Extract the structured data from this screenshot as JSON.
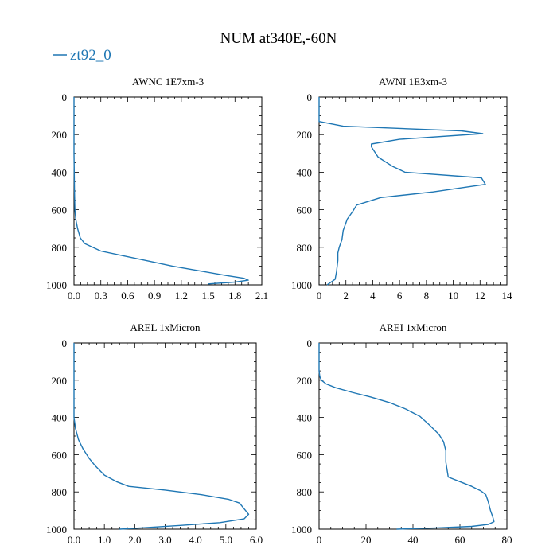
{
  "title": "NUM at340E,-60N",
  "legend": {
    "label": "zt92_0",
    "color": "#1f77b4"
  },
  "chart_data": [
    {
      "type": "line",
      "title": "AWNC  1E7xm-3",
      "xlim": [
        0,
        2.1
      ],
      "ylim": [
        1000,
        0
      ],
      "x_ticks": [
        0.0,
        0.3,
        0.6,
        0.9,
        1.2,
        1.5,
        1.8,
        2.1
      ],
      "x_tick_labels": [
        "0.0",
        "0.3",
        "0.6",
        "0.9",
        "1.2",
        "1.5",
        "1.8",
        "2.1"
      ],
      "y_ticks": [
        0,
        200,
        400,
        600,
        800,
        1000
      ],
      "y_tick_labels": [
        "0",
        "200",
        "400",
        "600",
        "800",
        "1000"
      ],
      "series": [
        {
          "name": "zt92_0",
          "x": [
            0,
            0,
            0.005,
            0.01,
            0.02,
            0.04,
            0.07,
            0.12,
            0.3,
            0.55,
            0.8,
            1.1,
            1.4,
            1.7,
            1.9,
            1.95,
            1.8,
            1.5
          ],
          "y": [
            0,
            300,
            500,
            600,
            650,
            700,
            750,
            780,
            820,
            845,
            870,
            900,
            925,
            950,
            965,
            975,
            985,
            995
          ]
        }
      ]
    },
    {
      "type": "line",
      "title": "AWNI  1E3xm-3",
      "xlim": [
        0,
        14
      ],
      "ylim": [
        1000,
        0
      ],
      "x_ticks": [
        0,
        2,
        4,
        6,
        8,
        10,
        12,
        14
      ],
      "x_tick_labels": [
        "0",
        "2",
        "4",
        "6",
        "8",
        "10",
        "12",
        "14"
      ],
      "y_ticks": [
        0,
        200,
        400,
        600,
        800,
        1000
      ],
      "y_tick_labels": [
        "0",
        "200",
        "400",
        "600",
        "800",
        "1000"
      ],
      "series": [
        {
          "name": "zt92_0",
          "x": [
            0,
            0,
            1.8,
            10.6,
            12.2,
            6.0,
            3.9,
            3.9,
            4.4,
            5.5,
            6.4,
            12.1,
            12.4,
            8.5,
            4.6,
            2.8,
            2.5,
            2.1,
            1.8,
            1.7,
            1.5,
            1.4,
            1.4,
            1.3,
            1.2,
            0.6
          ],
          "y": [
            0,
            130,
            155,
            180,
            195,
            225,
            250,
            265,
            320,
            370,
            400,
            430,
            465,
            505,
            535,
            575,
            610,
            650,
            710,
            760,
            800,
            830,
            870,
            930,
            970,
            1000
          ]
        }
      ]
    },
    {
      "type": "line",
      "title": "AREL  1xMicron",
      "xlim": [
        0,
        6
      ],
      "ylim": [
        1000,
        0
      ],
      "x_ticks": [
        0,
        1,
        2,
        3,
        4,
        5,
        6
      ],
      "x_tick_labels": [
        "0.0",
        "1.0",
        "2.0",
        "3.0",
        "4.0",
        "5.0",
        "6.0"
      ],
      "y_ticks": [
        0,
        200,
        400,
        600,
        800,
        1000
      ],
      "y_tick_labels": [
        "0",
        "200",
        "400",
        "600",
        "800",
        "1000"
      ],
      "series": [
        {
          "name": "zt92_0",
          "x": [
            0,
            0,
            0.05,
            0.15,
            0.3,
            0.5,
            0.7,
            1.0,
            1.4,
            1.8,
            3.0,
            4.2,
            5.1,
            5.45,
            5.6,
            5.75,
            5.6,
            4.8,
            3.5,
            2.2,
            1.5
          ],
          "y": [
            0,
            400,
            460,
            520,
            570,
            620,
            660,
            710,
            745,
            770,
            790,
            815,
            840,
            860,
            890,
            920,
            945,
            965,
            980,
            993,
            1000
          ]
        }
      ]
    },
    {
      "type": "line",
      "title": "AREI  1xMicron",
      "xlim": [
        0,
        80
      ],
      "ylim": [
        1000,
        0
      ],
      "x_ticks": [
        0,
        20,
        40,
        60,
        80
      ],
      "x_tick_labels": [
        "0",
        "20",
        "40",
        "60",
        "80"
      ],
      "y_ticks": [
        0,
        200,
        400,
        600,
        800,
        1000
      ],
      "y_tick_labels": [
        "0",
        "200",
        "400",
        "600",
        "800",
        "1000"
      ],
      "series": [
        {
          "name": "zt92_0",
          "x": [
            0,
            0,
            0.3,
            1,
            3,
            7,
            14,
            22,
            30,
            37,
            43,
            47,
            51,
            53,
            54,
            54,
            55,
            60,
            65,
            69,
            71,
            72,
            73,
            74,
            74.5,
            72,
            65,
            50,
            33
          ],
          "y": [
            0,
            150,
            180,
            200,
            220,
            240,
            265,
            290,
            320,
            355,
            395,
            440,
            490,
            530,
            580,
            640,
            720,
            745,
            770,
            795,
            815,
            850,
            900,
            935,
            960,
            975,
            985,
            993,
            1000
          ]
        }
      ]
    }
  ]
}
